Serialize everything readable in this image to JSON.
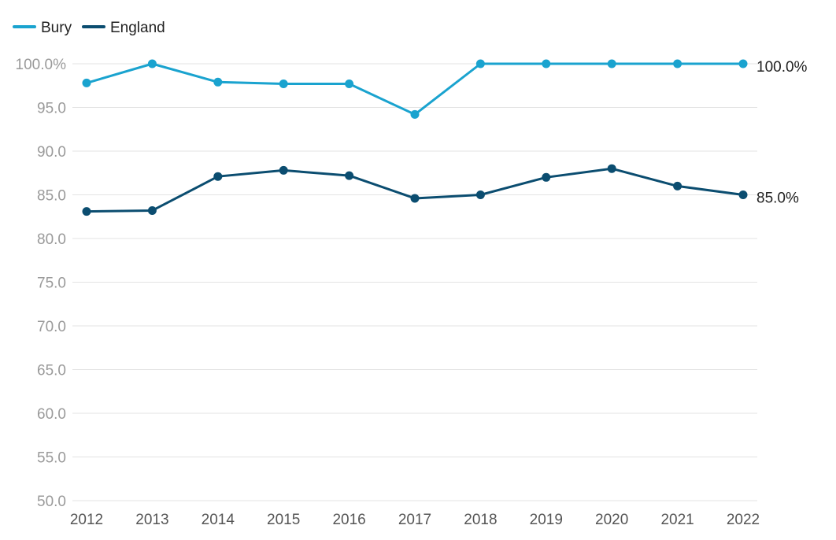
{
  "chart_data": {
    "type": "line",
    "title": "",
    "xlabel": "",
    "ylabel": "",
    "x": [
      2012,
      2013,
      2014,
      2015,
      2016,
      2017,
      2018,
      2019,
      2020,
      2021,
      2022
    ],
    "ylim": [
      50,
      100
    ],
    "yticks": [
      "100.0%",
      "95.0",
      "90.0",
      "85.0",
      "80.0",
      "75.0",
      "70.0",
      "65.0",
      "60.0",
      "55.0",
      "50.0"
    ],
    "ytick_values": [
      100,
      95,
      90,
      85,
      80,
      75,
      70,
      65,
      60,
      55,
      50
    ],
    "grid": true,
    "legend_placement": "top-left",
    "series": [
      {
        "name": "Bury",
        "color": "#1aa3cf",
        "values": [
          97.8,
          100.0,
          97.9,
          97.7,
          97.7,
          94.2,
          100.0,
          100.0,
          100.0,
          100.0,
          100.0
        ],
        "end_label": "100.0%"
      },
      {
        "name": "England",
        "color": "#0b4d70",
        "values": [
          83.1,
          83.2,
          87.1,
          87.8,
          87.2,
          84.6,
          85.0,
          87.0,
          88.0,
          86.0,
          85.0
        ],
        "end_label": "85.0%"
      }
    ]
  }
}
